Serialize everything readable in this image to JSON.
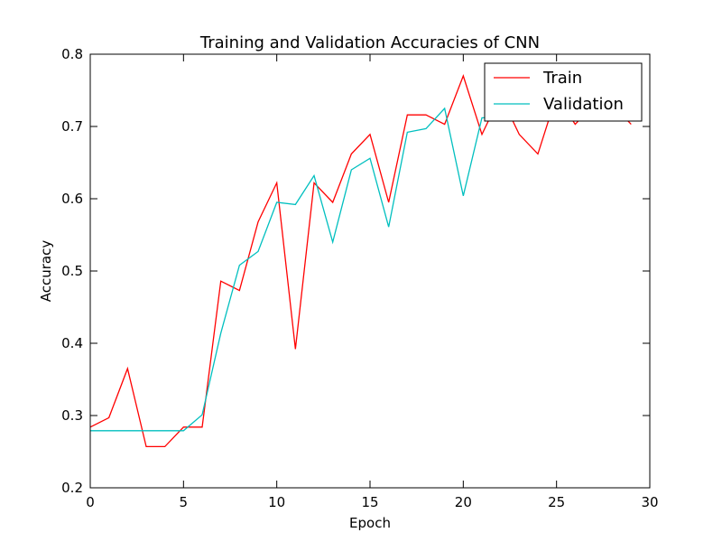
{
  "chart_data": {
    "type": "line",
    "title": "Training and Validation Accuracies of CNN",
    "xlabel": "Epoch",
    "ylabel": "Accuracy",
    "xlim": [
      0,
      30
    ],
    "ylim": [
      0.2,
      0.8
    ],
    "xticks": [
      0,
      5,
      10,
      15,
      20,
      25,
      30
    ],
    "yticks": [
      0.2,
      0.3,
      0.4,
      0.5,
      0.6,
      0.7,
      0.8
    ],
    "xtick_labels": [
      "0",
      "5",
      "10",
      "15",
      "20",
      "25",
      "30"
    ],
    "ytick_labels": [
      "0.2",
      "0.3",
      "0.4",
      "0.5",
      "0.6",
      "0.7",
      "0.8"
    ],
    "grid": false,
    "legend_position": "top-right",
    "x": [
      0,
      1,
      2,
      3,
      4,
      5,
      6,
      7,
      8,
      9,
      10,
      11,
      12,
      13,
      14,
      15,
      16,
      17,
      18,
      19,
      20,
      21,
      22,
      23,
      24,
      25,
      26,
      27,
      28,
      29
    ],
    "series": [
      {
        "name": "Train",
        "color": "#ff0000",
        "values": [
          0.284,
          0.297,
          0.365,
          0.257,
          0.257,
          0.284,
          0.284,
          0.486,
          0.473,
          0.568,
          0.622,
          0.392,
          0.622,
          0.595,
          0.662,
          0.689,
          0.595,
          0.716,
          0.716,
          0.703,
          0.77,
          0.689,
          0.743,
          0.689,
          0.662,
          0.743,
          0.703,
          0.73,
          0.73,
          0.703
        ]
      },
      {
        "name": "Validation",
        "color": "#00bfbf",
        "values": [
          0.279,
          0.279,
          0.279,
          0.279,
          0.279,
          0.279,
          0.301,
          0.414,
          0.508,
          0.527,
          0.595,
          0.592,
          0.632,
          0.54,
          0.64,
          0.656,
          0.561,
          0.692,
          0.697,
          0.725,
          0.604,
          0.712,
          0.712,
          0.72,
          0.72,
          0.72,
          0.72,
          0.72,
          0.72,
          0.72
        ]
      }
    ]
  }
}
